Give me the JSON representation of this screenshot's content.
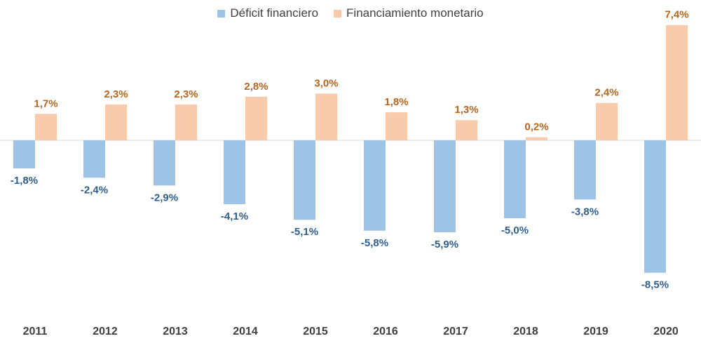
{
  "chart_data": {
    "type": "bar",
    "categories": [
      "2011",
      "2012",
      "2013",
      "2014",
      "2015",
      "2016",
      "2017",
      "2018",
      "2019",
      "2020"
    ],
    "series": [
      {
        "name": "Déficit financiero",
        "color": "#9DC3E6",
        "label_color": "#2E5E8E",
        "values": [
          -1.8,
          -2.4,
          -2.9,
          -4.1,
          -5.1,
          -5.8,
          -5.9,
          -5.0,
          -3.8,
          -8.5
        ],
        "labels": [
          "-1,8%",
          "-2,4%",
          "-2,9%",
          "-4,1%",
          "-5,1%",
          "-5,8%",
          "-5,9%",
          "-5,0%",
          "-3,8%",
          "-8,5%"
        ]
      },
      {
        "name": "Financiamiento monetario",
        "color": "#F8CBAD",
        "label_color": "#B8651B",
        "values": [
          1.7,
          2.3,
          2.3,
          2.8,
          3.0,
          1.8,
          1.3,
          0.2,
          2.4,
          7.4
        ],
        "labels": [
          "1,7%",
          "2,3%",
          "2,3%",
          "2,8%",
          "3,0%",
          "1,8%",
          "1,3%",
          "0,2%",
          "2,4%",
          "7,4%"
        ]
      }
    ],
    "title": "",
    "xlabel": "",
    "ylabel": "",
    "grid": false,
    "legend_position": "top-center"
  }
}
